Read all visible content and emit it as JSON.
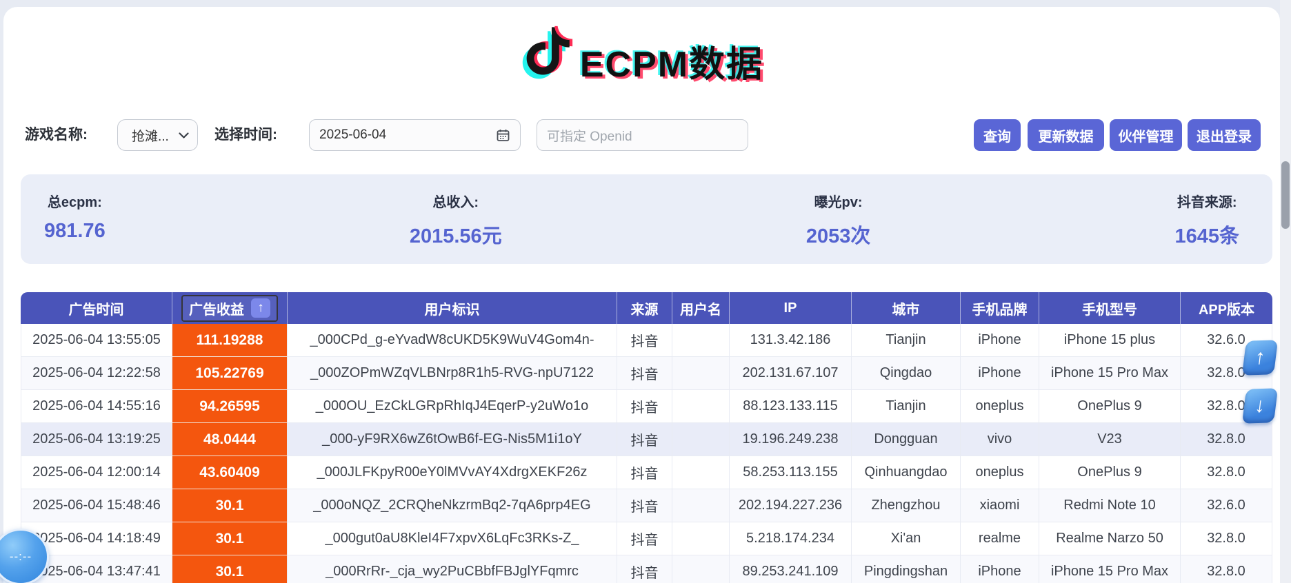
{
  "header": {
    "title": "ECPM数据"
  },
  "filters": {
    "game_label": "游戏名称:",
    "game_selected": "抢滩...",
    "date_label": "选择时间:",
    "date_value": "2025-06-04",
    "openid_placeholder": "可指定 Openid"
  },
  "actions": {
    "query": "查询",
    "refresh": "更新数据",
    "partner": "伙伴管理",
    "logout": "退出登录"
  },
  "stats": [
    {
      "label": "总ecpm:",
      "value": "981.76"
    },
    {
      "label": "总收入:",
      "value": "2015.56元"
    },
    {
      "label": "曝光pv:",
      "value": "2053次"
    },
    {
      "label": "抖音来源:",
      "value": "1645条"
    }
  ],
  "table": {
    "headers": [
      "广告时间",
      "广告收益",
      "用户标识",
      "来源",
      "用户名",
      "IP",
      "城市",
      "手机品牌",
      "手机型号",
      "APP版本"
    ],
    "sort_arrow": "↑",
    "highlighted_row_index": 3,
    "rows": [
      [
        "2025-06-04 13:55:05",
        "111.19288",
        "_000CPd_g-eYvadW8cUKD5K9WuV4Gom4n-",
        "抖音",
        "",
        "131.3.42.186",
        "Tianjin",
        "iPhone",
        "iPhone 15 plus",
        "32.6.0"
      ],
      [
        "2025-06-04 12:22:58",
        "105.22769",
        "_000ZOPmWZqVLBNrp8R1h5-RVG-npU7122",
        "抖音",
        "",
        "202.131.67.107",
        "Qingdao",
        "iPhone",
        "iPhone 15 Pro Max",
        "32.8.0"
      ],
      [
        "2025-06-04 14:55:16",
        "94.26595",
        "_000OU_EzCkLGRpRhIqJ4EqerP-y2uWo1o",
        "抖音",
        "",
        "88.123.133.115",
        "Tianjin",
        "oneplus",
        "OnePlus 9",
        "32.8.0"
      ],
      [
        "2025-06-04 13:19:25",
        "48.0444",
        "_000-yF9RX6wZ6tOwB6f-EG-Nis5M1i1oY",
        "抖音",
        "",
        "19.196.249.238",
        "Dongguan",
        "vivo",
        "V23",
        "32.8.0"
      ],
      [
        "2025-06-04 12:00:14",
        "43.60409",
        "_000JLFKpyR00eY0lMVvAY4XdrgXEKF26z",
        "抖音",
        "",
        "58.253.113.155",
        "Qinhuangdao",
        "oneplus",
        "OnePlus 9",
        "32.8.0"
      ],
      [
        "2025-06-04 15:48:46",
        "30.1",
        "_000oNQZ_2CRQheNkzrmBq2-7qA6prp4EG",
        "抖音",
        "",
        "202.194.227.236",
        "Zhengzhou",
        "xiaomi",
        "Redmi Note 10",
        "32.6.0"
      ],
      [
        "2025-06-04 14:18:49",
        "30.1",
        "_000gut0aU8KleI4F7xpvX6LqFc3RKs-Z_",
        "抖音",
        "",
        "5.218.174.234",
        "Xi'an",
        "realme",
        "Realme Narzo 50",
        "32.8.0"
      ],
      [
        "2025-06-04 13:47:41",
        "30.1",
        "_000RrRr-_cja_wy2PuCBbfFBJglYFqmrc",
        "抖音",
        "",
        "89.253.241.109",
        "Pingdingshan",
        "iPhone",
        "iPhone 15 Pro Max",
        "32.8.0"
      ]
    ]
  },
  "floating": {
    "scroll_up": "↑",
    "scroll_down": "↓",
    "clock_text": "--:--"
  },
  "colors": {
    "accent_button": "#5a66d6",
    "table_header_bg": "#4a54b9",
    "revenue_cell_bg": "#f4560e",
    "stat_value": "#5564d0",
    "logo_pink": "#fe2c55",
    "logo_cyan": "#25f4ee",
    "page_bg": "#e7ebf3"
  }
}
